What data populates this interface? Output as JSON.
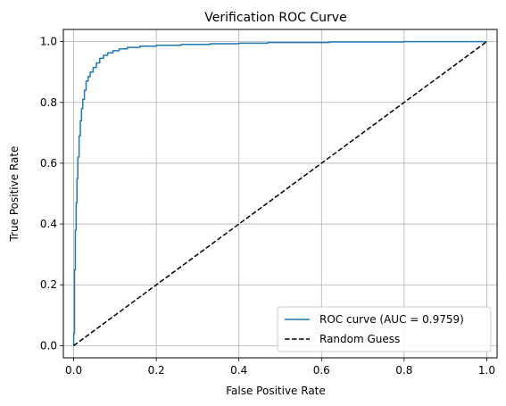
{
  "chart_data": {
    "type": "line",
    "title": "Verification ROC Curve",
    "xlabel": "False Positive Rate",
    "ylabel": "True Positive Rate",
    "xlim": [
      -0.025,
      1.025
    ],
    "ylim": [
      -0.04,
      1.04
    ],
    "xticks": [
      0.0,
      0.2,
      0.4,
      0.6,
      0.8,
      1.0
    ],
    "yticks": [
      0.0,
      0.2,
      0.4,
      0.6,
      0.8,
      1.0
    ],
    "xtick_labels": [
      "0.0",
      "0.2",
      "0.4",
      "0.6",
      "0.8",
      "1.0"
    ],
    "ytick_labels": [
      "0.0",
      "0.2",
      "0.4",
      "0.6",
      "0.8",
      "1.0"
    ],
    "grid": true,
    "legend_position": "lower-right",
    "series": [
      {
        "name": "ROC curve (AUC = 0.9759)",
        "color": "#1f77b4",
        "style": "solid",
        "x": [
          0.0,
          0.0,
          0.002,
          0.002,
          0.004,
          0.004,
          0.006,
          0.006,
          0.008,
          0.008,
          0.01,
          0.01,
          0.013,
          0.013,
          0.016,
          0.016,
          0.019,
          0.019,
          0.022,
          0.022,
          0.026,
          0.026,
          0.03,
          0.03,
          0.035,
          0.035,
          0.04,
          0.04,
          0.047,
          0.047,
          0.055,
          0.055,
          0.063,
          0.063,
          0.072,
          0.072,
          0.082,
          0.082,
          0.095,
          0.095,
          0.11,
          0.11,
          0.13,
          0.13,
          0.16,
          0.16,
          0.2,
          0.2,
          0.26,
          0.26,
          0.33,
          0.33,
          0.4,
          0.4,
          0.47,
          0.47,
          0.62,
          0.62,
          0.8,
          0.8,
          1.0
        ],
        "y": [
          0.0,
          0.04,
          0.04,
          0.25,
          0.25,
          0.38,
          0.38,
          0.47,
          0.47,
          0.55,
          0.55,
          0.62,
          0.62,
          0.69,
          0.69,
          0.74,
          0.74,
          0.78,
          0.78,
          0.81,
          0.81,
          0.84,
          0.84,
          0.87,
          0.87,
          0.885,
          0.885,
          0.9,
          0.9,
          0.915,
          0.915,
          0.93,
          0.93,
          0.945,
          0.945,
          0.955,
          0.955,
          0.963,
          0.963,
          0.97,
          0.97,
          0.976,
          0.976,
          0.981,
          0.981,
          0.985,
          0.985,
          0.988,
          0.988,
          0.991,
          0.991,
          0.993,
          0.993,
          0.995,
          0.995,
          0.997,
          0.997,
          0.999,
          0.999,
          1.0,
          1.0
        ]
      },
      {
        "name": "Random Guess",
        "color": "#000000",
        "style": "dashed",
        "x": [
          0.0,
          1.0
        ],
        "y": [
          0.0,
          1.0
        ]
      }
    ]
  }
}
